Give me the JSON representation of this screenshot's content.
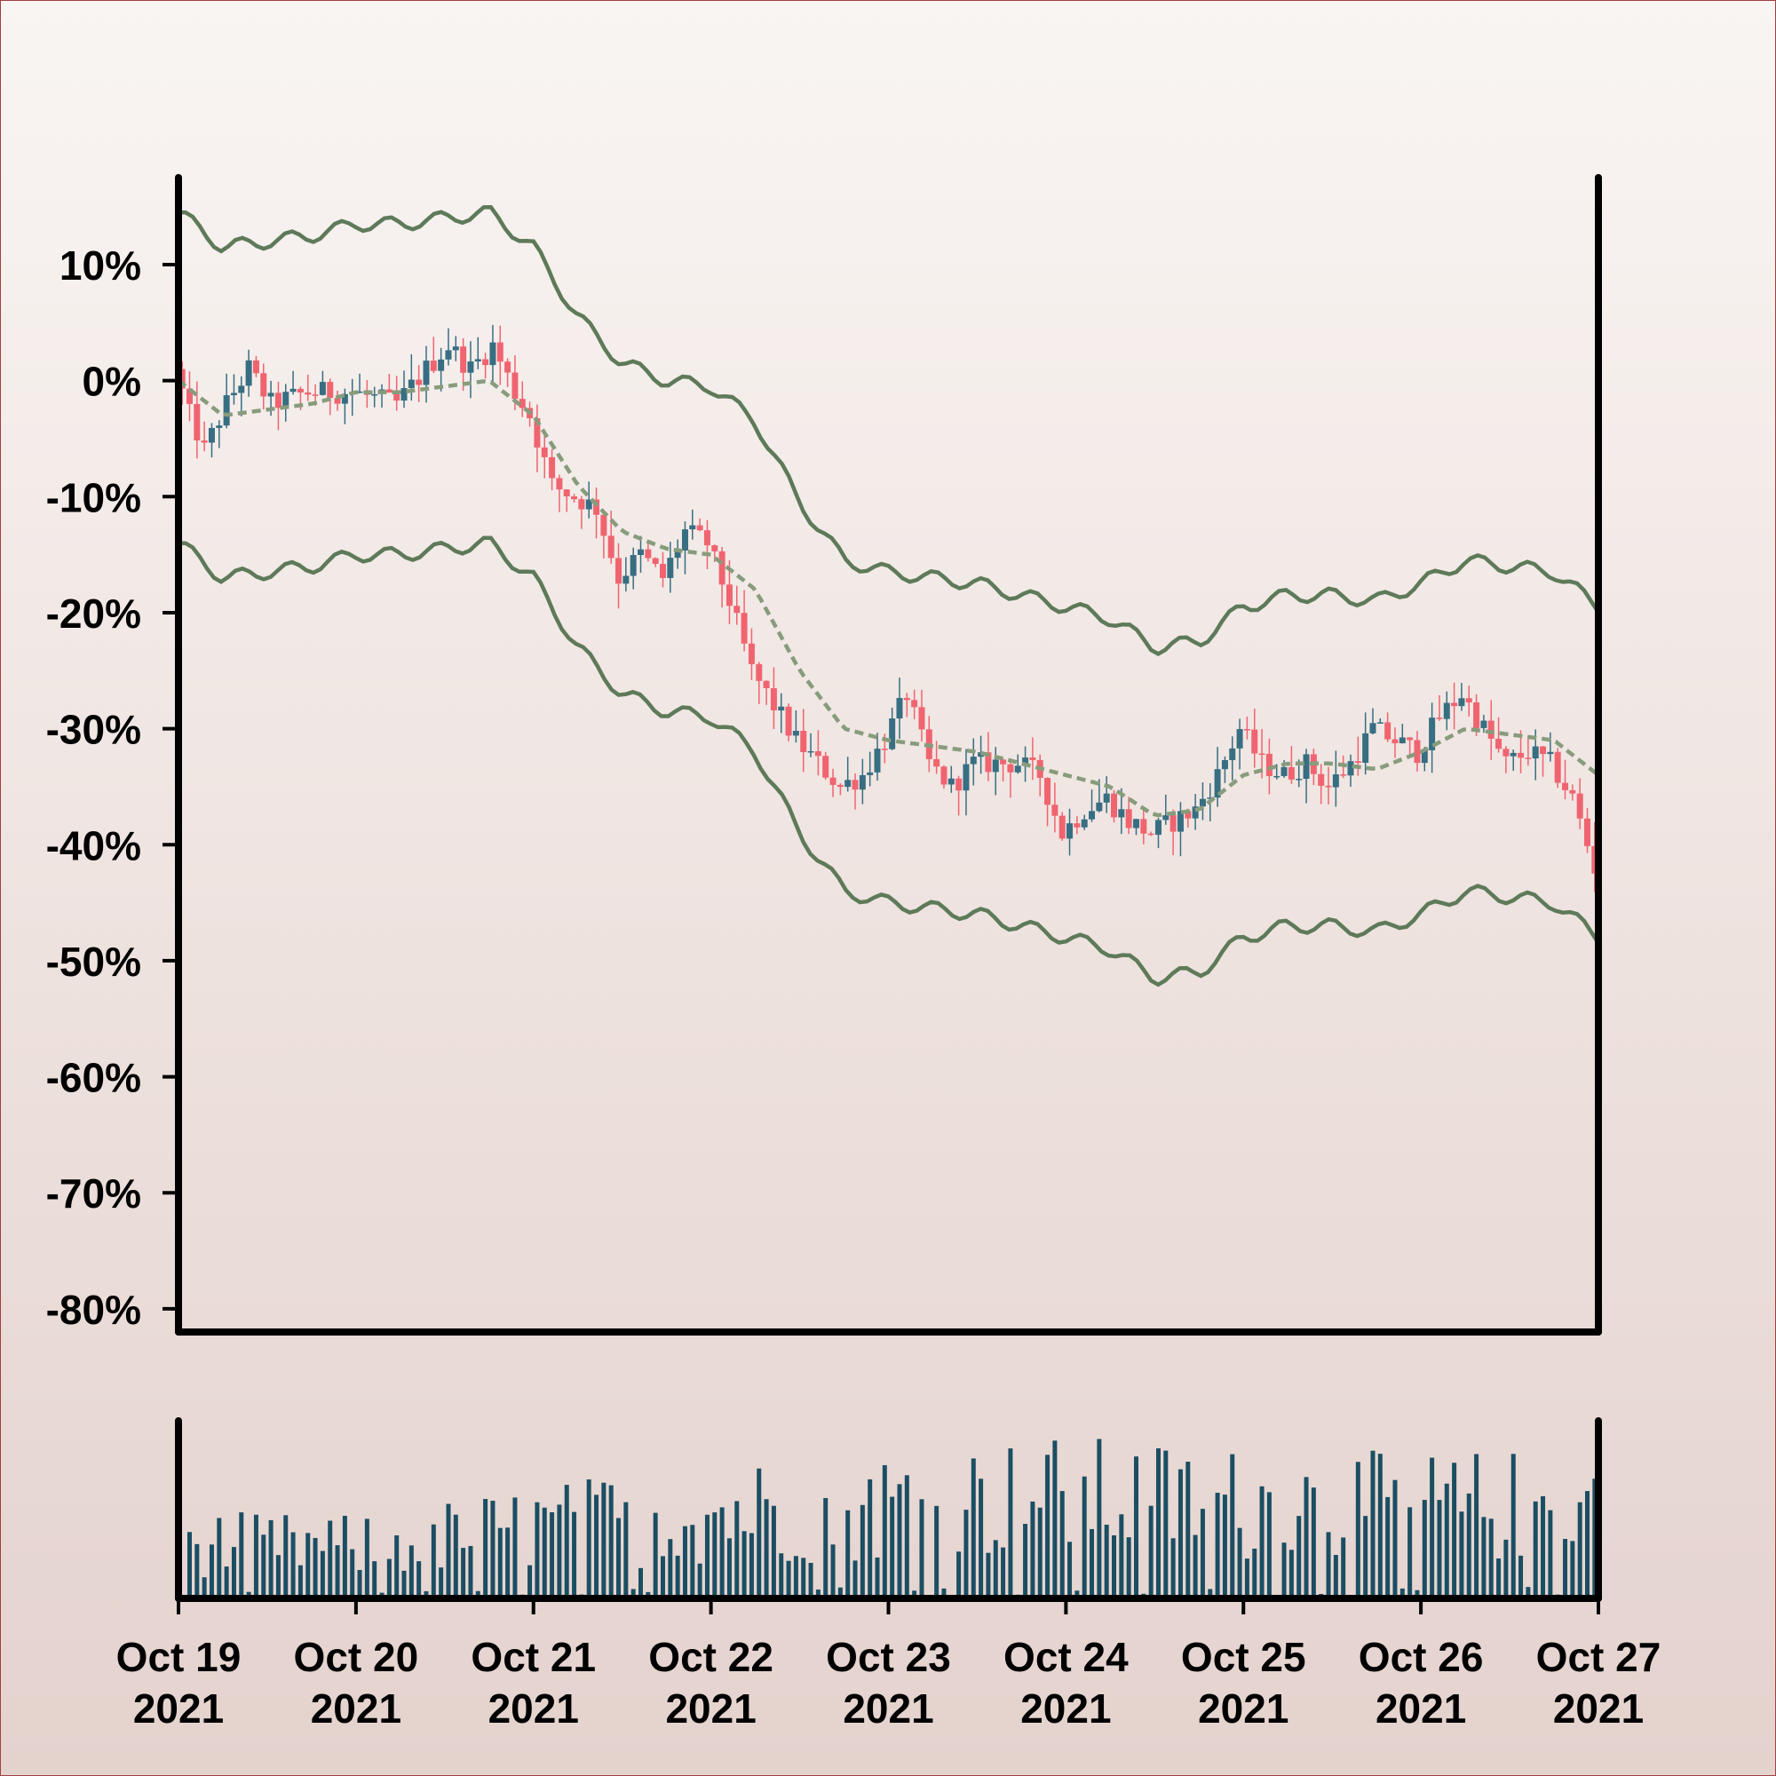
{
  "chart_data": [
    {
      "type": "candlestick",
      "name": "price-panel",
      "y_tick_labels": [
        "10%",
        "0%",
        "-10%",
        "-20%",
        "-30%",
        "-40%",
        "-50%",
        "-60%",
        "-70%",
        "-80%"
      ],
      "y_ticks": [
        10,
        0,
        -10,
        -20,
        -30,
        -40,
        -50,
        -60,
        -70,
        -80
      ],
      "ylim": [
        -82,
        17.5
      ],
      "x_range": [
        "2021-10-19T00:00",
        "2021-10-27T00:00"
      ],
      "candle_interval_hours": 1,
      "close_path": [
        [
          "2021-10-19T00:00",
          1
        ],
        [
          "2021-10-19T02:00",
          -3
        ],
        [
          "2021-10-19T04:00",
          -6
        ],
        [
          "2021-10-19T07:00",
          -2
        ],
        [
          "2021-10-19T10:00",
          1
        ],
        [
          "2021-10-19T13:00",
          -2
        ],
        [
          "2021-10-19T18:00",
          -1
        ],
        [
          "2021-10-20T00:00",
          -1
        ],
        [
          "2021-10-20T06:00",
          -2
        ],
        [
          "2021-10-20T10:00",
          1
        ],
        [
          "2021-10-20T13:00",
          3
        ],
        [
          "2021-10-20T16:00",
          1
        ],
        [
          "2021-10-20T19:00",
          3
        ],
        [
          "2021-10-20T22:00",
          -1
        ],
        [
          "2021-10-21T00:00",
          -3
        ],
        [
          "2021-10-21T03:00",
          -9
        ],
        [
          "2021-10-21T06:00",
          -10
        ],
        [
          "2021-10-21T09:00",
          -11
        ],
        [
          "2021-10-21T12:00",
          -17
        ],
        [
          "2021-10-21T15:00",
          -15
        ],
        [
          "2021-10-21T18:00",
          -17
        ],
        [
          "2021-10-21T21:00",
          -13
        ],
        [
          "2021-10-22T00:00",
          -14
        ],
        [
          "2021-10-22T03:00",
          -19
        ],
        [
          "2021-10-22T06:00",
          -25
        ],
        [
          "2021-10-22T09:00",
          -28
        ],
        [
          "2021-10-22T12:00",
          -31
        ],
        [
          "2021-10-22T15:00",
          -33
        ],
        [
          "2021-10-22T18:00",
          -35
        ],
        [
          "2021-10-22T21:00",
          -34
        ],
        [
          "2021-10-23T00:00",
          -31
        ],
        [
          "2021-10-23T03:00",
          -27
        ],
        [
          "2021-10-23T06:00",
          -33
        ],
        [
          "2021-10-23T09:00",
          -35
        ],
        [
          "2021-10-23T12:00",
          -33
        ],
        [
          "2021-10-23T15:00",
          -33
        ],
        [
          "2021-10-23T18:00",
          -33
        ],
        [
          "2021-10-23T21:00",
          -34
        ],
        [
          "2021-10-24T00:00",
          -39
        ],
        [
          "2021-10-24T03:00",
          -37
        ],
        [
          "2021-10-24T06:00",
          -36
        ],
        [
          "2021-10-24T09:00",
          -38
        ],
        [
          "2021-10-24T12:00",
          -39
        ],
        [
          "2021-10-24T15:00",
          -38
        ],
        [
          "2021-10-24T18:00",
          -37
        ],
        [
          "2021-10-24T21:00",
          -34
        ],
        [
          "2021-10-25T00:00",
          -30
        ],
        [
          "2021-10-25T03:00",
          -33
        ],
        [
          "2021-10-25T06:00",
          -34
        ],
        [
          "2021-10-25T09:00",
          -33
        ],
        [
          "2021-10-25T12:00",
          -35
        ],
        [
          "2021-10-25T15:00",
          -33
        ],
        [
          "2021-10-25T18:00",
          -30
        ],
        [
          "2021-10-25T21:00",
          -31
        ],
        [
          "2021-10-26T00:00",
          -32
        ],
        [
          "2021-10-26T03:00",
          -29
        ],
        [
          "2021-10-26T06:00",
          -27
        ],
        [
          "2021-10-26T09:00",
          -30
        ],
        [
          "2021-10-26T12:00",
          -33
        ],
        [
          "2021-10-26T15:00",
          -32
        ],
        [
          "2021-10-26T18:00",
          -33
        ],
        [
          "2021-10-26T21:00",
          -36
        ],
        [
          "2021-10-27T00:00",
          -42
        ]
      ],
      "moving_average_path": [
        [
          "2021-10-19T00:00",
          0
        ],
        [
          "2021-10-19T06:00",
          -3
        ],
        [
          "2021-10-19T12:00",
          -2.5
        ],
        [
          "2021-10-19T18:00",
          -2
        ],
        [
          "2021-10-20T00:00",
          -1
        ],
        [
          "2021-10-20T06:00",
          -1
        ],
        [
          "2021-10-20T12:00",
          -0.5
        ],
        [
          "2021-10-20T18:00",
          0
        ],
        [
          "2021-10-21T00:00",
          -3
        ],
        [
          "2021-10-21T06:00",
          -9
        ],
        [
          "2021-10-21T12:00",
          -13
        ],
        [
          "2021-10-21T18:00",
          -14.5
        ],
        [
          "2021-10-22T00:00",
          -15
        ],
        [
          "2021-10-22T06:00",
          -18
        ],
        [
          "2021-10-22T12:00",
          -25
        ],
        [
          "2021-10-22T18:00",
          -30
        ],
        [
          "2021-10-23T00:00",
          -31
        ],
        [
          "2021-10-23T06:00",
          -31.5
        ],
        [
          "2021-10-23T12:00",
          -32
        ],
        [
          "2021-10-23T18:00",
          -33
        ],
        [
          "2021-10-24T00:00",
          -34
        ],
        [
          "2021-10-24T06:00",
          -35
        ],
        [
          "2021-10-24T12:00",
          -37.5
        ],
        [
          "2021-10-24T18:00",
          -37
        ],
        [
          "2021-10-25T00:00",
          -34
        ],
        [
          "2021-10-25T06:00",
          -33
        ],
        [
          "2021-10-25T12:00",
          -33
        ],
        [
          "2021-10-25T18:00",
          -33.5
        ],
        [
          "2021-10-26T00:00",
          -32
        ],
        [
          "2021-10-26T06:00",
          -30
        ],
        [
          "2021-10-26T12:00",
          -30.5
        ],
        [
          "2021-10-26T18:00",
          -31
        ],
        [
          "2021-10-27T00:00",
          -34
        ]
      ],
      "band_width": 14,
      "colors": {
        "up": "#376e82",
        "down": "#f06470",
        "band": "#5e7a59",
        "moving_average": "#879c7c"
      }
    },
    {
      "type": "bar",
      "name": "volume-panel",
      "x_tick_labels": [
        "Oct 19\n2021",
        "Oct 20\n2021",
        "Oct 21\n2021",
        "Oct 22\n2021",
        "Oct 23\n2021",
        "Oct 24\n2021",
        "Oct 25\n2021",
        "Oct 26\n2021",
        "Oct 27\n2021"
      ],
      "x_ticks": [
        "2021-10-19",
        "2021-10-20",
        "2021-10-21",
        "2021-10-22",
        "2021-10-23",
        "2021-10-24",
        "2021-10-25",
        "2021-10-26",
        "2021-10-27"
      ],
      "volume_profile": [
        [
          "2021-10-19",
          0.35
        ],
        [
          "2021-10-20",
          0.33
        ],
        [
          "2021-10-21",
          0.45
        ],
        [
          "2021-10-22",
          0.55
        ],
        [
          "2021-10-23",
          0.6
        ],
        [
          "2021-10-24",
          0.65
        ],
        [
          "2021-10-25",
          0.6
        ],
        [
          "2021-10-26",
          0.58
        ],
        [
          "2021-10-27",
          0.6
        ]
      ],
      "ylim": [
        0,
        1
      ],
      "colors": {
        "bar": "#1b4e63"
      }
    }
  ]
}
